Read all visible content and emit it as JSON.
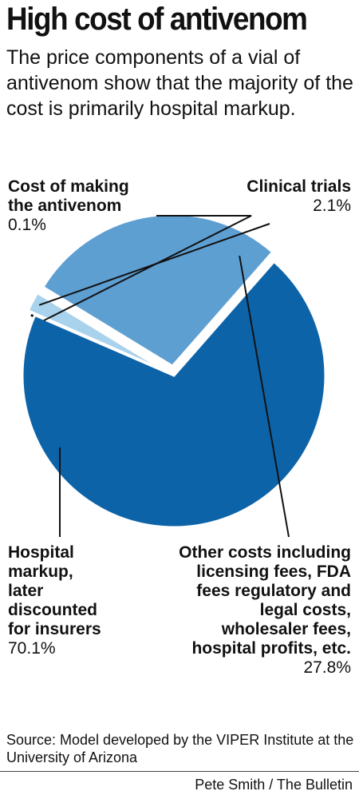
{
  "header": {
    "title": "High cost of antivenom",
    "subtitle": "The price components of a vial of antivenom show that the majority of the cost is primarily hospital markup."
  },
  "chart_data": {
    "type": "pie",
    "slices": [
      {
        "label_lines": [
          "Cost of making",
          "the antivenom"
        ],
        "value": 0.1,
        "display": "0.1%",
        "color": "#111111"
      },
      {
        "label_lines": [
          "Clinical trials"
        ],
        "value": 2.1,
        "display": "2.1%",
        "color": "#a9d2ec"
      },
      {
        "label_lines": [
          "Other costs including",
          "licensing fees, FDA",
          "fees regulatory and",
          "legal costs,",
          "wholesaler fees,",
          "hospital profits, etc."
        ],
        "value": 27.8,
        "display": "27.8%",
        "color": "#5e9fd2"
      },
      {
        "label_lines": [
          "Hospital",
          "markup,",
          "later",
          "discounted",
          "for insurers"
        ],
        "value": 70.1,
        "display": "70.1%",
        "color": "#0d63a8"
      }
    ]
  },
  "footer": {
    "source": "Source: Model developed by the VIPER Institute at the University of Arizona",
    "credit": "Pete Smith / The Bulletin"
  }
}
